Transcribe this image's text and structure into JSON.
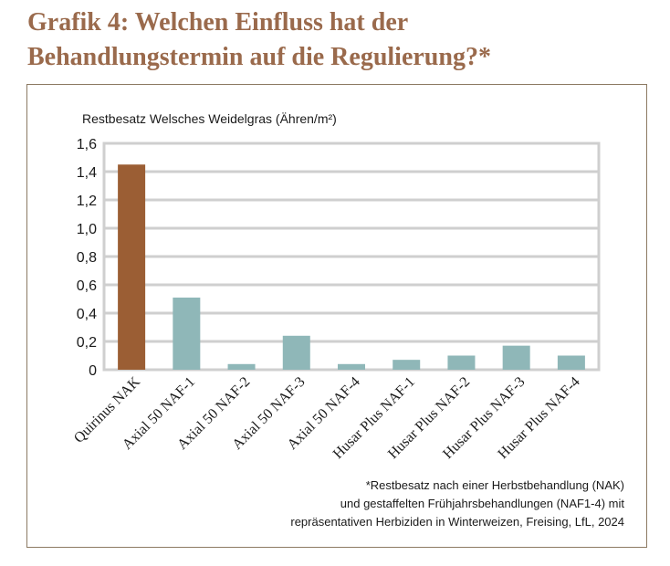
{
  "title_lines": [
    "Grafik 4: Welchen Einfluss hat der",
    "Behandlungstermin auf die Regulierung?*"
  ],
  "footnote_lines": [
    "*Restbesatz  nach einer Herbstbehandlung (NAK)",
    "und gestaffelten Frühjahrsbehandlungen (NAF1-4) mit",
    "repräsentativen Herbiziden in Winterweizen, Freising, LfL, 2024"
  ],
  "chart_data": {
    "type": "bar",
    "title": "Grafik 4: Welchen Einfluss hat der Behandlungstermin auf die Regulierung?*",
    "ylabel": "Restbesatz Welsches Weidelgras (Ähren/m²)",
    "xlabel": "",
    "categories": [
      "Quirinus NAK",
      "Axial 50 NAF-1",
      "Axial 50 NAF-2",
      "Axial 50 NAF-3",
      "Axial 50 NAF-4",
      "Husar Plus NAF-1",
      "Husar Plus NAF-2",
      "Husar Plus NAF-3",
      "Husar Plus NAF-4"
    ],
    "values": [
      1.45,
      0.51,
      0.04,
      0.24,
      0.04,
      0.07,
      0.1,
      0.17,
      0.1
    ],
    "bar_colors": [
      "#9b5e34",
      "#8fb7b8",
      "#8fb7b8",
      "#8fb7b8",
      "#8fb7b8",
      "#8fb7b8",
      "#8fb7b8",
      "#8fb7b8",
      "#8fb7b8"
    ],
    "ylim": [
      0,
      1.6
    ],
    "yticks": [
      0,
      0.2,
      0.4,
      0.6,
      0.8,
      1.0,
      1.2,
      1.4,
      1.6
    ],
    "ytick_labels": [
      "0",
      "0,2",
      "0,4",
      "0,6",
      "0,8",
      "1,0",
      "1,2",
      "1,4",
      "1,6"
    ],
    "grid": true,
    "legend": "none"
  }
}
